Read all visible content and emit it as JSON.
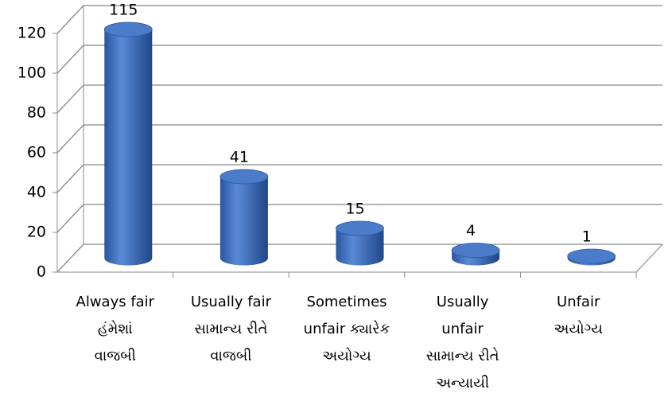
{
  "chart_data": {
    "type": "bar3d",
    "categories": [
      "Always fair\nહંમેશાં\nવાજબી",
      "Usually fair\nસામાન્ય રીતે\nવાજબી",
      "Sometimes\nunfair ક્યારેક\nઅયોગ્ય",
      "Usually\nunfair\nસામાન્ય રીતે\nઅન્યાયી",
      "Unfair\nઅયોગ્ય"
    ],
    "values": [
      115,
      41,
      15,
      4,
      1
    ],
    "color": "#3566b3",
    "ylim": [
      0,
      120
    ],
    "yticks": [
      0,
      20,
      40,
      60,
      80,
      100,
      120
    ],
    "grid": true
  }
}
